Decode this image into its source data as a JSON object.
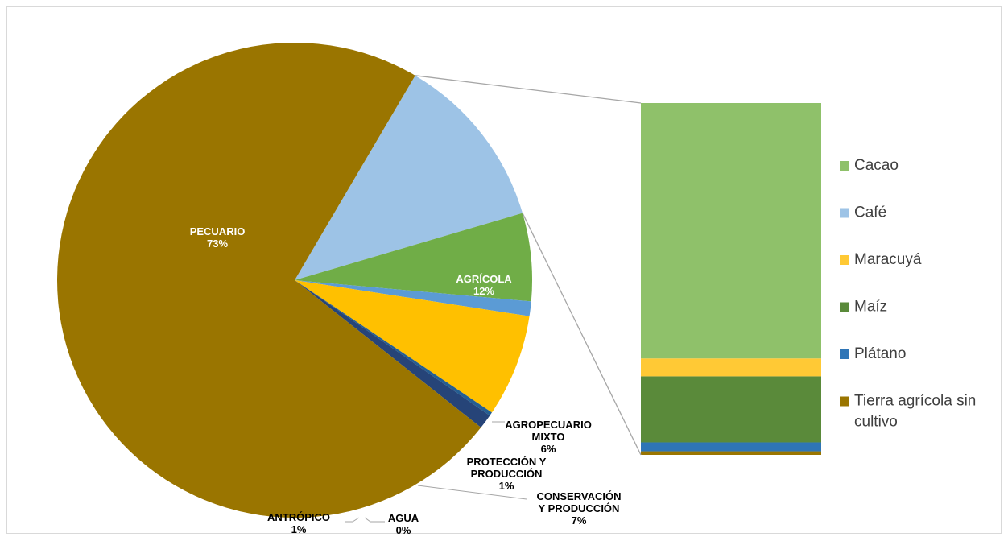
{
  "chart_data": {
    "type": "bar-of-pie",
    "pie": {
      "slices": [
        {
          "name": "PECUARIO",
          "value": 73,
          "label": "73%",
          "color": "#9a7500"
        },
        {
          "name": "AGRÍCOLA",
          "value": 12,
          "label": "12%",
          "color": "#9dc3e6"
        },
        {
          "name": "AGROPECUARIO MIXTO",
          "value": 6,
          "label": "6%",
          "color": "#70ad47"
        },
        {
          "name": "PROTECCIÓN Y PRODUCCIÓN",
          "value": 1,
          "label": "1%",
          "color": "#5b9bd5"
        },
        {
          "name": "CONSERVACIÓN Y PRODUCCIÓN",
          "value": 7,
          "label": "7%",
          "color": "#ffc000"
        },
        {
          "name": "AGUA",
          "value": 0,
          "label": "0%",
          "color": "#255e91"
        },
        {
          "name": "ANTRÓPICO",
          "value": 1,
          "label": "1%",
          "color": "#264478"
        }
      ]
    },
    "bar": {
      "categories": [
        "Cacao",
        "Café",
        "Maracuyá",
        "Maíz",
        "Plátano",
        "Tierra agrícola sin cultivo"
      ],
      "values": [
        71.5,
        0,
        5,
        18.5,
        2.5,
        1
      ],
      "colors": [
        "#8fc16a",
        "#9dc3e6",
        "#ffc935",
        "#5a8a3a",
        "#2e75b6",
        "#9a7500"
      ]
    },
    "legend_position": "right"
  }
}
